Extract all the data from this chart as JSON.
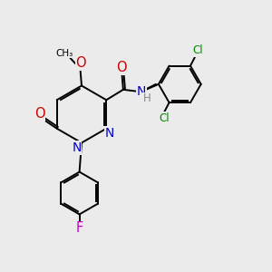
{
  "bg_color": "#ebebeb",
  "atom_colors": {
    "C": "#000000",
    "N": "#0000cc",
    "O": "#cc0000",
    "F": "#cc00cc",
    "Cl": "#008800",
    "H": "#888888"
  },
  "bond_color": "#000000",
  "bond_width": 1.4,
  "font_size": 8.5,
  "scale": 1.15
}
